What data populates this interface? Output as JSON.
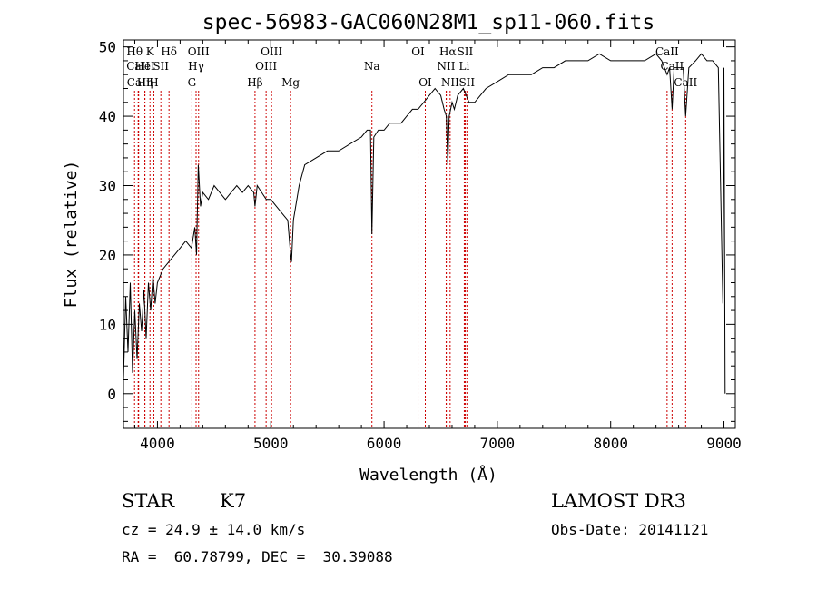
{
  "chart_data": {
    "type": "line",
    "title": "spec-56983-GAC060N28M1_sp11-060.fits",
    "xlabel": "Wavelength (Å)",
    "ylabel": "Flux (relative)",
    "xlim": [
      3700,
      9100
    ],
    "ylim": [
      -5,
      51
    ],
    "x_ticks": [
      4000,
      5000,
      6000,
      7000,
      8000,
      9000
    ],
    "y_ticks": [
      0,
      10,
      20,
      30,
      40,
      50
    ],
    "series": [
      {
        "name": "flux",
        "x": [
          3700,
          3720,
          3740,
          3760,
          3780,
          3800,
          3820,
          3840,
          3860,
          3880,
          3900,
          3920,
          3940,
          3960,
          3980,
          4000,
          4050,
          4100,
          4150,
          4200,
          4250,
          4300,
          4330,
          4345,
          4360,
          4380,
          4400,
          4450,
          4500,
          4550,
          4600,
          4650,
          4700,
          4750,
          4800,
          4850,
          4861,
          4880,
          4920,
          4960,
          5000,
          5050,
          5100,
          5150,
          5170,
          5183,
          5200,
          5250,
          5300,
          5400,
          5500,
          5600,
          5700,
          5800,
          5850,
          5880,
          5893,
          5910,
          5950,
          6000,
          6050,
          6100,
          6150,
          6200,
          6250,
          6300,
          6350,
          6400,
          6450,
          6500,
          6530,
          6550,
          6563,
          6575,
          6600,
          6620,
          6650,
          6700,
          6750,
          6800,
          6900,
          7000,
          7100,
          7200,
          7300,
          7400,
          7500,
          7600,
          7700,
          7800,
          7900,
          8000,
          8100,
          8200,
          8300,
          8400,
          8450,
          8498,
          8520,
          8542,
          8560,
          8600,
          8640,
          8662,
          8690,
          8750,
          8800,
          8850,
          8900,
          8950,
          8990,
          9000,
          9010
        ],
        "y": [
          2,
          14,
          6,
          16,
          3,
          12,
          5,
          13,
          9,
          15,
          8,
          16,
          12,
          17,
          13,
          16,
          18,
          19,
          20,
          21,
          22,
          21,
          24,
          20,
          33,
          27,
          29,
          28,
          30,
          29,
          28,
          29,
          30,
          29,
          30,
          29,
          27,
          30,
          29,
          28,
          28,
          27,
          26,
          25,
          21,
          19,
          25,
          30,
          33,
          34,
          35,
          35,
          36,
          37,
          38,
          38,
          23,
          37,
          38,
          38,
          39,
          39,
          39,
          40,
          41,
          41,
          42,
          43,
          44,
          43,
          41,
          40,
          33,
          40,
          42,
          41,
          43,
          44,
          42,
          42,
          44,
          45,
          46,
          46,
          46,
          47,
          47,
          48,
          48,
          48,
          49,
          48,
          48,
          48,
          48,
          49,
          48,
          46,
          47,
          41,
          47,
          47,
          47,
          40,
          47,
          48,
          49,
          48,
          48,
          47,
          13,
          47,
          0
        ]
      }
    ],
    "spectral_lines": [
      {
        "label": "Hθ",
        "wavelength": 3798,
        "row": 1
      },
      {
        "label": "CaII",
        "wavelength": 3830,
        "row": 2
      },
      {
        "label": "CaII",
        "wavelength": 3834,
        "row": 3
      },
      {
        "label": "HeI",
        "wavelength": 3889,
        "row": 2
      },
      {
        "label": "K",
        "wavelength": 3934,
        "row": 1
      },
      {
        "label": "Hη",
        "wavelength": 3889,
        "row": 3
      },
      {
        "label": "H",
        "wavelength": 3968,
        "row": 3
      },
      {
        "label": "SII",
        "wavelength": 4030,
        "row": 2
      },
      {
        "label": "Hδ",
        "wavelength": 4102,
        "row": 1
      },
      {
        "label": "OIII",
        "wavelength": 4363,
        "row": 1
      },
      {
        "label": "Hγ",
        "wavelength": 4341,
        "row": 2
      },
      {
        "label": "G",
        "wavelength": 4304,
        "row": 3
      },
      {
        "label": "Hβ",
        "wavelength": 4861,
        "row": 3
      },
      {
        "label": "OIII",
        "wavelength": 5007,
        "row": 1
      },
      {
        "label": "OIII",
        "wavelength": 4959,
        "row": 2
      },
      {
        "label": "Mg",
        "wavelength": 5175,
        "row": 3
      },
      {
        "label": "Na",
        "wavelength": 5893,
        "row": 2
      },
      {
        "label": "OI",
        "wavelength": 6300,
        "row": 1
      },
      {
        "label": "OI",
        "wavelength": 6364,
        "row": 3
      },
      {
        "label": "Hα",
        "wavelength": 6563,
        "row": 1
      },
      {
        "label": "SII",
        "wavelength": 6716,
        "row": 1
      },
      {
        "label": "NII",
        "wavelength": 6548,
        "row": 2
      },
      {
        "label": "Li",
        "wavelength": 6708,
        "row": 2
      },
      {
        "label": "NII",
        "wavelength": 6583,
        "row": 3
      },
      {
        "label": "SII",
        "wavelength": 6731,
        "row": 3
      },
      {
        "label": "CaII",
        "wavelength": 8498,
        "row": 1
      },
      {
        "label": "CaII",
        "wavelength": 8542,
        "row": 2
      },
      {
        "label": "CaII",
        "wavelength": 8662,
        "row": 3
      }
    ],
    "line_color": "#000000",
    "marker_color": "#cc0000"
  },
  "info": {
    "class": "STAR",
    "subclass": "K7",
    "cz": "cz = 24.9 ± 14.0 km/s",
    "coords": "RA =  60.78799, DEC =  30.39088",
    "survey": "LAMOST DR3",
    "obs_date": "Obs-Date: 20141121"
  }
}
